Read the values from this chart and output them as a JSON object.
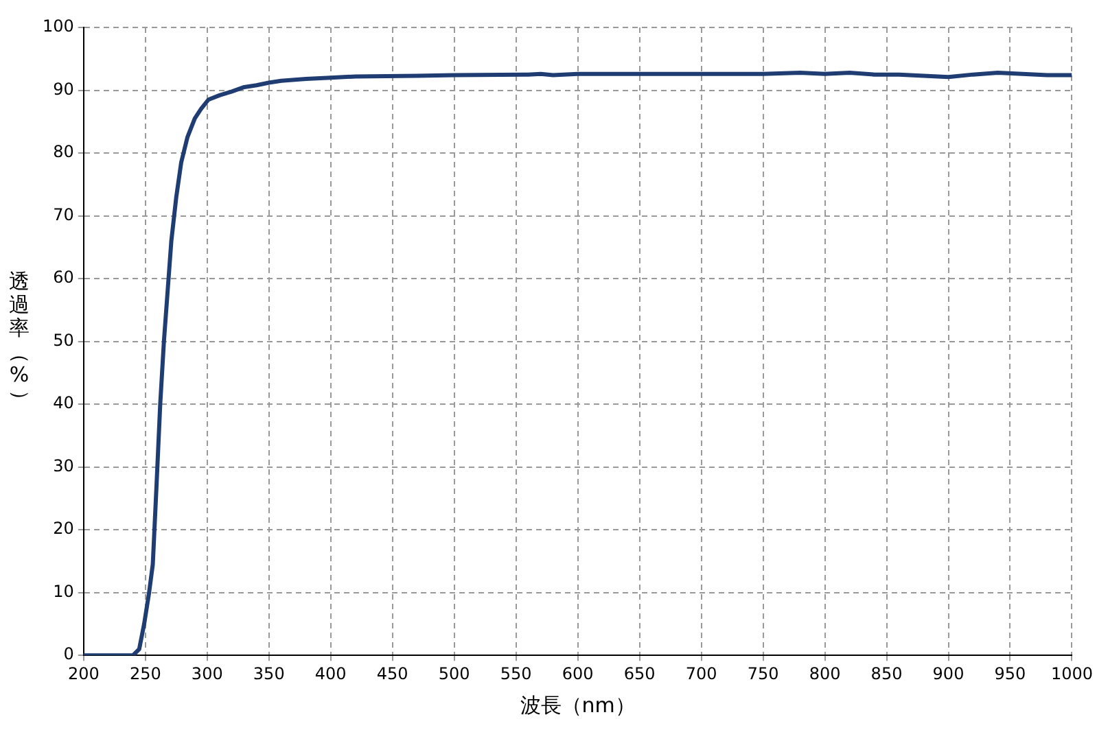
{
  "chart_data": {
    "type": "line",
    "xlabel": "波長（nm）",
    "ylabel": "透過率（%）",
    "x": [
      200,
      240,
      245,
      249,
      253,
      256,
      259,
      262,
      265,
      268,
      271,
      275,
      279,
      284,
      290,
      295,
      301,
      310,
      320,
      330,
      340,
      350,
      360,
      380,
      400,
      420,
      470,
      500,
      560,
      570,
      580,
      600,
      700,
      750,
      780,
      800,
      820,
      840,
      860,
      880,
      900,
      920,
      940,
      960,
      980,
      1000
    ],
    "series": [
      {
        "color": "#1f3d73",
        "values": [
          0,
          0,
          1,
          5,
          10,
          14.5,
          27,
          40,
          50,
          58,
          66,
          73,
          78.5,
          82.5,
          85.5,
          87,
          88.5,
          89.2,
          89.8,
          90.5,
          90.8,
          91.2,
          91.5,
          91.8,
          92,
          92.2,
          92.3,
          92.4,
          92.5,
          92.6,
          92.4,
          92.6,
          92.6,
          92.6,
          92.8,
          92.6,
          92.8,
          92.5,
          92.5,
          92.3,
          92.1,
          92.5,
          92.8,
          92.6,
          92.4,
          92.4
        ]
      }
    ],
    "xlim": [
      200,
      1000
    ],
    "xticks": [
      200,
      250,
      300,
      350,
      400,
      450,
      500,
      550,
      600,
      650,
      700,
      750,
      800,
      850,
      900,
      950,
      1000
    ],
    "ylim": [
      0,
      100
    ],
    "yticks": [
      0,
      10,
      20,
      30,
      40,
      50,
      60,
      70,
      80,
      90,
      100
    ],
    "grid": true,
    "legend": false,
    "marker": "none",
    "line_style": "solid"
  }
}
